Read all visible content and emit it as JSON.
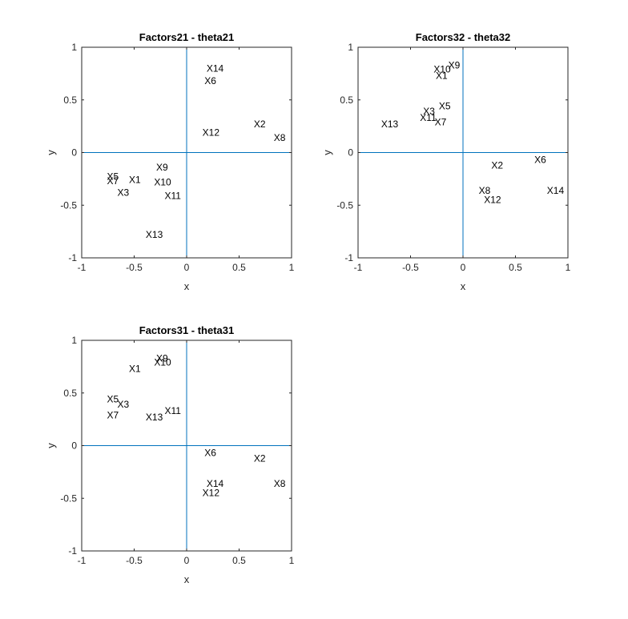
{
  "chart_data": [
    {
      "type": "scatter",
      "title": "Factors21 - theta21",
      "xlabel": "x",
      "ylabel": "y",
      "xlim": [
        -1,
        1
      ],
      "ylim": [
        -1,
        1
      ],
      "xticks": [
        -1,
        -0.5,
        0,
        0.5,
        1
      ],
      "yticks": [
        -1,
        -0.5,
        0,
        0.5,
        1
      ],
      "xtick_labels": [
        "-1",
        "-0.5",
        "0",
        "0.5",
        "1"
      ],
      "ytick_labels": [
        "-1",
        "-0.5",
        "0",
        "0.5",
        "1"
      ],
      "reference_lines": {
        "x": 0,
        "y": 0,
        "color": "#0072BD"
      },
      "grid": false,
      "points": [
        {
          "label": "X1",
          "x": -0.55,
          "y": -0.26
        },
        {
          "label": "X2",
          "x": 0.64,
          "y": 0.27
        },
        {
          "label": "X3",
          "x": -0.66,
          "y": -0.38
        },
        {
          "label": "X5",
          "x": -0.76,
          "y": -0.23
        },
        {
          "label": "X6",
          "x": 0.17,
          "y": 0.68
        },
        {
          "label": "X7",
          "x": -0.76,
          "y": -0.27
        },
        {
          "label": "X8",
          "x": 0.83,
          "y": 0.14
        },
        {
          "label": "X9",
          "x": -0.29,
          "y": -0.14
        },
        {
          "label": "X10",
          "x": -0.31,
          "y": -0.28
        },
        {
          "label": "X11",
          "x": -0.21,
          "y": -0.41
        },
        {
          "label": "X12",
          "x": 0.15,
          "y": 0.19
        },
        {
          "label": "X13",
          "x": -0.39,
          "y": -0.78
        },
        {
          "label": "X14",
          "x": 0.19,
          "y": 0.8
        }
      ]
    },
    {
      "type": "scatter",
      "title": "Factors32 - theta32",
      "xlabel": "x",
      "ylabel": "y",
      "xlim": [
        -1,
        1
      ],
      "ylim": [
        -1,
        1
      ],
      "xticks": [
        -1,
        -0.5,
        0,
        0.5,
        1
      ],
      "yticks": [
        -1,
        -0.5,
        0,
        0.5,
        1
      ],
      "xtick_labels": [
        "-1",
        "-0.5",
        "0",
        "0.5",
        "1"
      ],
      "ytick_labels": [
        "-1",
        "-0.5",
        "0",
        "0.5",
        "1"
      ],
      "reference_lines": {
        "x": 0,
        "y": 0,
        "color": "#0072BD"
      },
      "grid": false,
      "points": [
        {
          "label": "X1",
          "x": -0.26,
          "y": 0.73
        },
        {
          "label": "X2",
          "x": 0.27,
          "y": -0.12
        },
        {
          "label": "X3",
          "x": -0.38,
          "y": 0.39
        },
        {
          "label": "X5",
          "x": -0.23,
          "y": 0.44
        },
        {
          "label": "X6",
          "x": 0.68,
          "y": -0.07
        },
        {
          "label": "X7",
          "x": -0.27,
          "y": 0.29
        },
        {
          "label": "X8",
          "x": 0.15,
          "y": -0.36
        },
        {
          "label": "X9",
          "x": -0.14,
          "y": 0.83
        },
        {
          "label": "X10",
          "x": -0.28,
          "y": 0.79
        },
        {
          "label": "X11",
          "x": -0.41,
          "y": 0.33
        },
        {
          "label": "X12",
          "x": 0.2,
          "y": -0.45
        },
        {
          "label": "X13",
          "x": -0.78,
          "y": 0.27
        },
        {
          "label": "X14",
          "x": 0.8,
          "y": -0.36
        }
      ]
    },
    {
      "type": "scatter",
      "title": "Factors31 - theta31",
      "xlabel": "x",
      "ylabel": "y",
      "xlim": [
        -1,
        1
      ],
      "ylim": [
        -1,
        1
      ],
      "xticks": [
        -1,
        -0.5,
        0,
        0.5,
        1
      ],
      "yticks": [
        -1,
        -0.5,
        0,
        0.5,
        1
      ],
      "xtick_labels": [
        "-1",
        "-0.5",
        "0",
        "0.5",
        "1"
      ],
      "ytick_labels": [
        "-1",
        "-0.5",
        "0",
        "0.5",
        "1"
      ],
      "reference_lines": {
        "x": 0,
        "y": 0,
        "color": "#0072BD"
      },
      "grid": false,
      "points": [
        {
          "label": "X1",
          "x": -0.55,
          "y": 0.73
        },
        {
          "label": "X2",
          "x": 0.64,
          "y": -0.12
        },
        {
          "label": "X3",
          "x": -0.66,
          "y": 0.39
        },
        {
          "label": "X5",
          "x": -0.76,
          "y": 0.44
        },
        {
          "label": "X6",
          "x": 0.17,
          "y": -0.07
        },
        {
          "label": "X7",
          "x": -0.76,
          "y": 0.29
        },
        {
          "label": "X8",
          "x": 0.83,
          "y": -0.36
        },
        {
          "label": "X9",
          "x": -0.29,
          "y": 0.83
        },
        {
          "label": "X10",
          "x": -0.31,
          "y": 0.79
        },
        {
          "label": "X11",
          "x": -0.21,
          "y": 0.33
        },
        {
          "label": "X12",
          "x": 0.15,
          "y": -0.45
        },
        {
          "label": "X13",
          "x": -0.39,
          "y": 0.27
        },
        {
          "label": "X14",
          "x": 0.19,
          "y": -0.36
        }
      ]
    }
  ]
}
